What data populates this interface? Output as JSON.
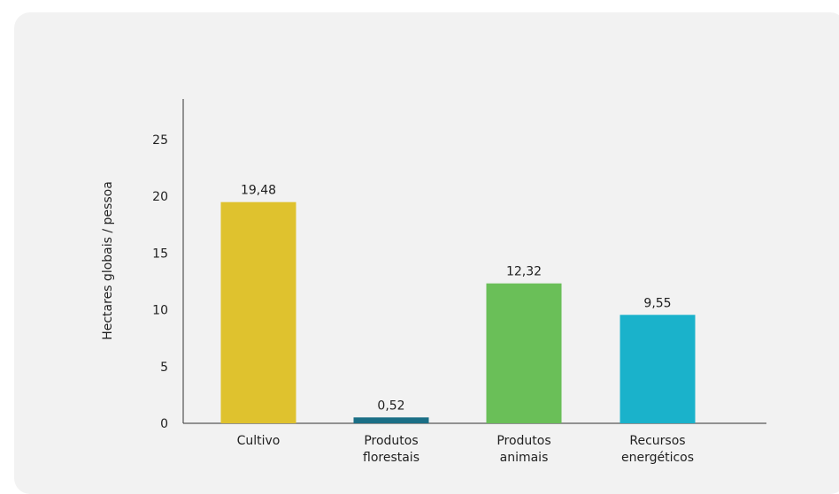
{
  "chart_data": {
    "type": "bar",
    "categories": [
      [
        "Cultivo"
      ],
      [
        "Produtos",
        "florestais"
      ],
      [
        "Produtos",
        "animais"
      ],
      [
        "Recursos",
        "energéticos"
      ]
    ],
    "values": [
      19.48,
      0.52,
      12.32,
      9.55
    ],
    "value_labels": [
      "19,48",
      "0,52",
      "12,32",
      "9,55"
    ],
    "colors": [
      "#dfc22e",
      "#1b6f86",
      "#6abf58",
      "#1ab2cb"
    ],
    "title": "",
    "xlabel": "",
    "ylabel": "Hectares globais / pessoa",
    "yticks": [
      0,
      5,
      10,
      15,
      20,
      25
    ],
    "ylim": [
      0,
      28
    ],
    "grid": false
  }
}
